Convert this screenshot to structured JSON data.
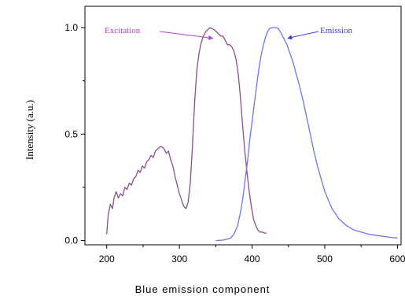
{
  "caption": "Blue emission component",
  "chart_data": {
    "type": "line",
    "title": "",
    "xlabel": "",
    "ylabel": "Intensity (a.u.)",
    "xlim": [
      170,
      605
    ],
    "ylim": [
      -0.02,
      1.1
    ],
    "x_ticks": [
      200,
      300,
      400,
      500,
      600
    ],
    "y_ticks": [
      0.0,
      0.5,
      1.0
    ],
    "y_tick_labels": [
      "0.0",
      "0.5",
      "1.0"
    ],
    "grid": false,
    "legend": "none",
    "series": [
      {
        "name": "Excitation",
        "color": "#8a4f8a",
        "x": [
          200,
          202,
          205,
          208,
          210,
          213,
          216,
          219,
          222,
          225,
          228,
          231,
          234,
          237,
          240,
          243,
          246,
          249,
          252,
          255,
          258,
          261,
          264,
          267,
          270,
          273,
          276,
          279,
          282,
          285,
          288,
          291,
          294,
          297,
          300,
          303,
          306,
          309,
          312,
          315,
          318,
          321,
          324,
          327,
          330,
          333,
          336,
          339,
          342,
          345,
          348,
          351,
          354,
          357,
          360,
          363,
          366,
          369,
          372,
          375,
          378,
          381,
          384,
          387,
          390,
          393,
          396,
          399,
          402,
          405,
          408,
          411,
          414,
          417,
          420
        ],
        "y": [
          0.03,
          0.12,
          0.17,
          0.15,
          0.2,
          0.23,
          0.2,
          0.22,
          0.21,
          0.25,
          0.24,
          0.27,
          0.26,
          0.29,
          0.3,
          0.33,
          0.32,
          0.35,
          0.34,
          0.37,
          0.38,
          0.4,
          0.39,
          0.42,
          0.43,
          0.44,
          0.44,
          0.43,
          0.41,
          0.42,
          0.38,
          0.35,
          0.3,
          0.26,
          0.22,
          0.19,
          0.16,
          0.15,
          0.18,
          0.27,
          0.45,
          0.65,
          0.8,
          0.88,
          0.93,
          0.96,
          0.98,
          0.99,
          1.0,
          0.995,
          0.99,
          0.98,
          0.97,
          0.96,
          0.96,
          0.94,
          0.92,
          0.92,
          0.91,
          0.89,
          0.85,
          0.78,
          0.67,
          0.54,
          0.42,
          0.32,
          0.23,
          0.16,
          0.1,
          0.07,
          0.05,
          0.04,
          0.04,
          0.035,
          0.035
        ]
      },
      {
        "name": "Emission",
        "color": "#6f74f5",
        "x": [
          350,
          360,
          370,
          375,
          380,
          385,
          388,
          391,
          394,
          397,
          400,
          403,
          406,
          409,
          412,
          415,
          418,
          421,
          424,
          427,
          430,
          433,
          436,
          439,
          442,
          445,
          448,
          451,
          454,
          457,
          460,
          465,
          470,
          475,
          480,
          485,
          490,
          495,
          500,
          510,
          520,
          530,
          540,
          550,
          560,
          570,
          580,
          590,
          600
        ],
        "y": [
          0.0,
          0.002,
          0.01,
          0.03,
          0.07,
          0.15,
          0.22,
          0.3,
          0.38,
          0.48,
          0.56,
          0.64,
          0.72,
          0.8,
          0.86,
          0.91,
          0.95,
          0.98,
          0.995,
          1.0,
          1.0,
          1.0,
          0.995,
          0.98,
          0.96,
          0.94,
          0.92,
          0.89,
          0.86,
          0.83,
          0.79,
          0.73,
          0.66,
          0.58,
          0.5,
          0.42,
          0.35,
          0.29,
          0.23,
          0.15,
          0.1,
          0.07,
          0.05,
          0.04,
          0.03,
          0.025,
          0.02,
          0.015,
          0.012
        ]
      }
    ],
    "annotations": [
      {
        "text": "Excitation",
        "series": 0,
        "color": "#b23fd0",
        "arrow_to": [
          346,
          0.95
        ]
      },
      {
        "text": "Emission",
        "series": 1,
        "color": "#3a3ae0",
        "arrow_to": [
          449,
          0.95
        ]
      }
    ]
  }
}
